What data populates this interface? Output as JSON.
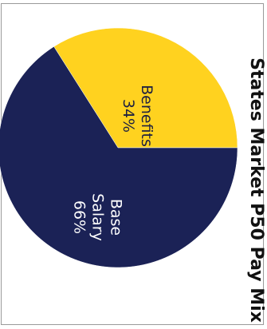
{
  "chart_data": {
    "type": "pie",
    "title": "States Market P50 Pay Mix",
    "slices": [
      {
        "label": "Benefits",
        "value": 34,
        "value_label": "34%",
        "color": "#FFD21F",
        "text_color": "#1f2140"
      },
      {
        "label": "Base Salary",
        "value": 66,
        "value_label": "66%",
        "color": "#1B2256",
        "text_color": "#ffffff"
      }
    ],
    "orientation": "rotated-90-clockwise"
  }
}
